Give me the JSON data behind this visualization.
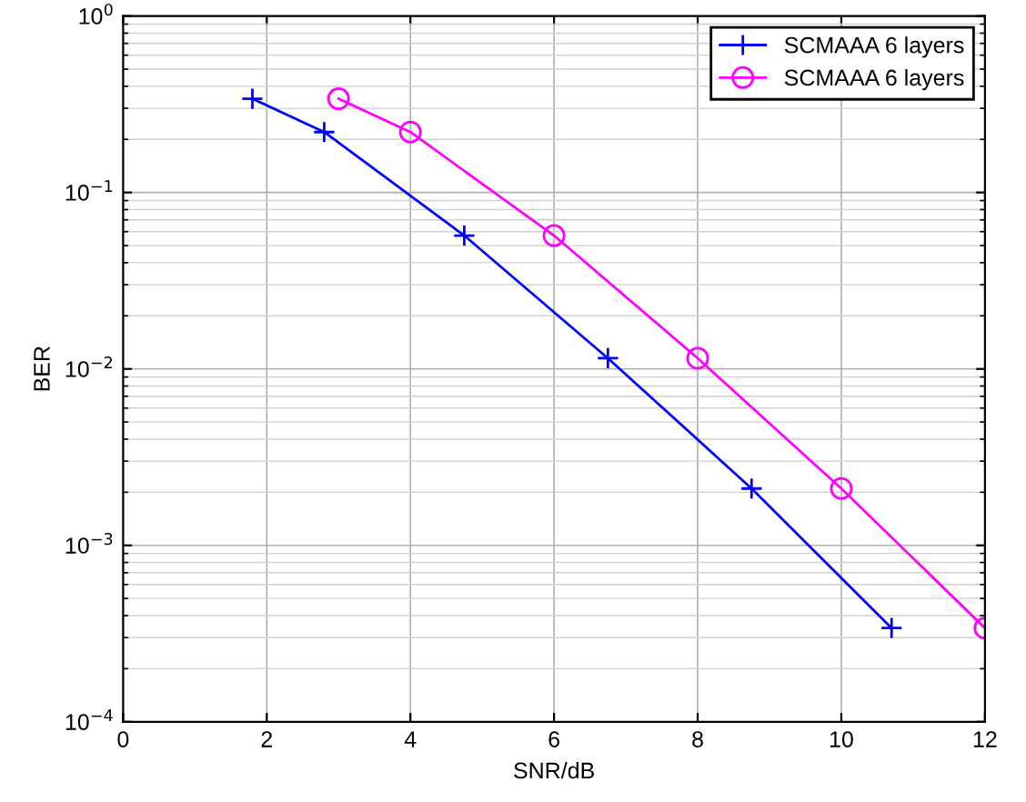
{
  "chart_data": {
    "type": "line",
    "xlabel": "SNR/dB",
    "ylabel": "BER",
    "log": "y",
    "grid": true,
    "legend": "top right",
    "xlim": [
      0,
      12
    ],
    "xticks": [
      0,
      2,
      4,
      6,
      8,
      10,
      12
    ],
    "ylim": [
      0.0001,
      1
    ],
    "yticks": [
      {
        "value": 0.0001,
        "label": "10$^{−4}$"
      },
      {
        "value": 0.001,
        "label": "10$^{−3}$"
      },
      {
        "value": 0.01,
        "label": "10$^{−2}$"
      },
      {
        "value": 0.1,
        "label": "10$^{−1}$"
      },
      {
        "value": 1,
        "label": "10$^{0}$"
      }
    ],
    "series": [
      {
        "name": "SCMAAA 6 layers",
        "color": "#0000ff",
        "marker": "cross",
        "x": [
          1.8,
          2.8,
          4.75,
          6.75,
          8.75,
          10.7
        ],
        "values": [
          0.34,
          0.22,
          0.057,
          0.0115,
          0.0021,
          0.00034
        ]
      },
      {
        "name": "SCMAAA 6 layers",
        "color": "#ff00ff",
        "marker": "circle",
        "x": [
          3,
          4,
          6,
          8,
          10,
          12
        ],
        "values": [
          0.34,
          0.22,
          0.057,
          0.0115,
          0.0021,
          0.00034
        ]
      }
    ]
  }
}
